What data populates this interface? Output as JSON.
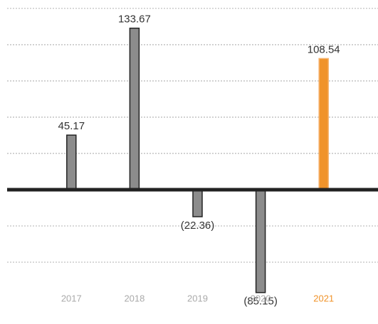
{
  "chart_data": {
    "type": "bar",
    "categories": [
      "2017",
      "2018",
      "2019",
      "2020",
      "2021"
    ],
    "values": [
      45.17,
      133.67,
      -22.36,
      -85.15,
      108.54
    ],
    "value_labels": [
      "45.17",
      "133.67",
      "(22.36)",
      "(85.15)",
      "108.54"
    ],
    "colors": [
      "#8c8c8c",
      "#8c8c8c",
      "#8c8c8c",
      "#8c8c8c",
      "#f0932a"
    ],
    "category_colors": [
      "#aaaaaa",
      "#aaaaaa",
      "#aaaaaa",
      "#aaaaaa",
      "#f0932a"
    ],
    "ylim": [
      -100,
      157
    ],
    "yticks": [
      -60,
      -30,
      0,
      30,
      60,
      90,
      120,
      150
    ],
    "grid": true
  }
}
